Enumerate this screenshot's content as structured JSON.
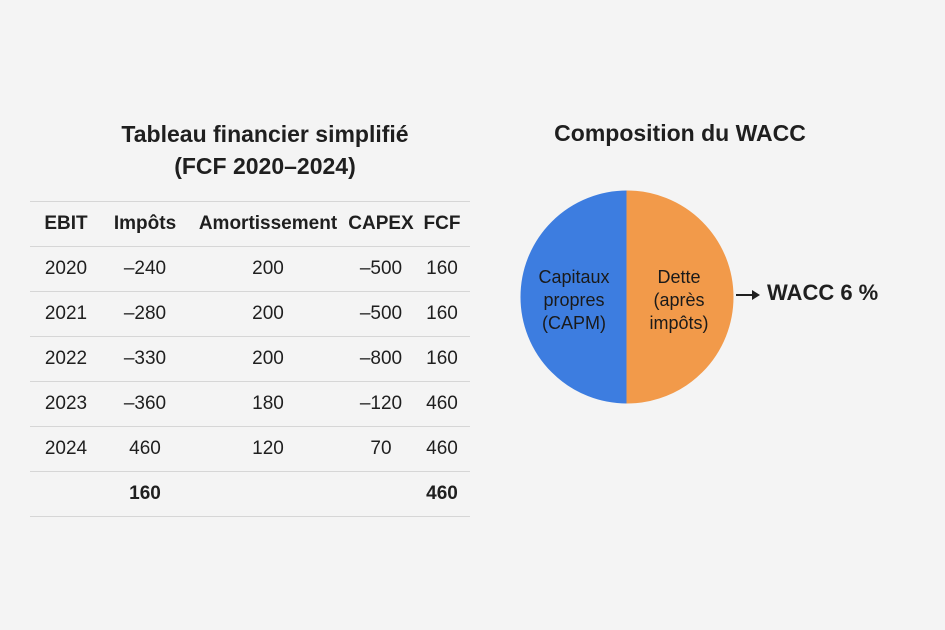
{
  "table": {
    "title_line1": "Tableau financier simplifié",
    "title_line2": "(FCF 2020–2024)",
    "headers": [
      "EBIT",
      "Impôts",
      "Amortissement",
      "CAPEX",
      "FCF"
    ],
    "rows": [
      [
        "2020",
        "–240",
        "200",
        "–500",
        "160"
      ],
      [
        "2021",
        "–280",
        "200",
        "–500",
        "160"
      ],
      [
        "2022",
        "–330",
        "200",
        "–800",
        "160"
      ],
      [
        "2023",
        "–360",
        "180",
        "–120",
        "460"
      ],
      [
        "2024",
        "460",
        "120",
        "70",
        "460"
      ]
    ],
    "totals": [
      "",
      "160",
      "",
      "",
      "460"
    ]
  },
  "chart_data": {
    "type": "pie",
    "title": "Composition du WACC",
    "slices": [
      {
        "name_lines": [
          "Capitaux",
          "propres",
          "(CAPM)"
        ],
        "value": 50,
        "color": "#3d7de0"
      },
      {
        "name_lines": [
          "Dette",
          "(après",
          "impôts)"
        ],
        "value": 50,
        "color": "#f29a4a"
      }
    ],
    "annotation": "WACC 6 %",
    "annotation_icon": "arrow-right-icon"
  }
}
